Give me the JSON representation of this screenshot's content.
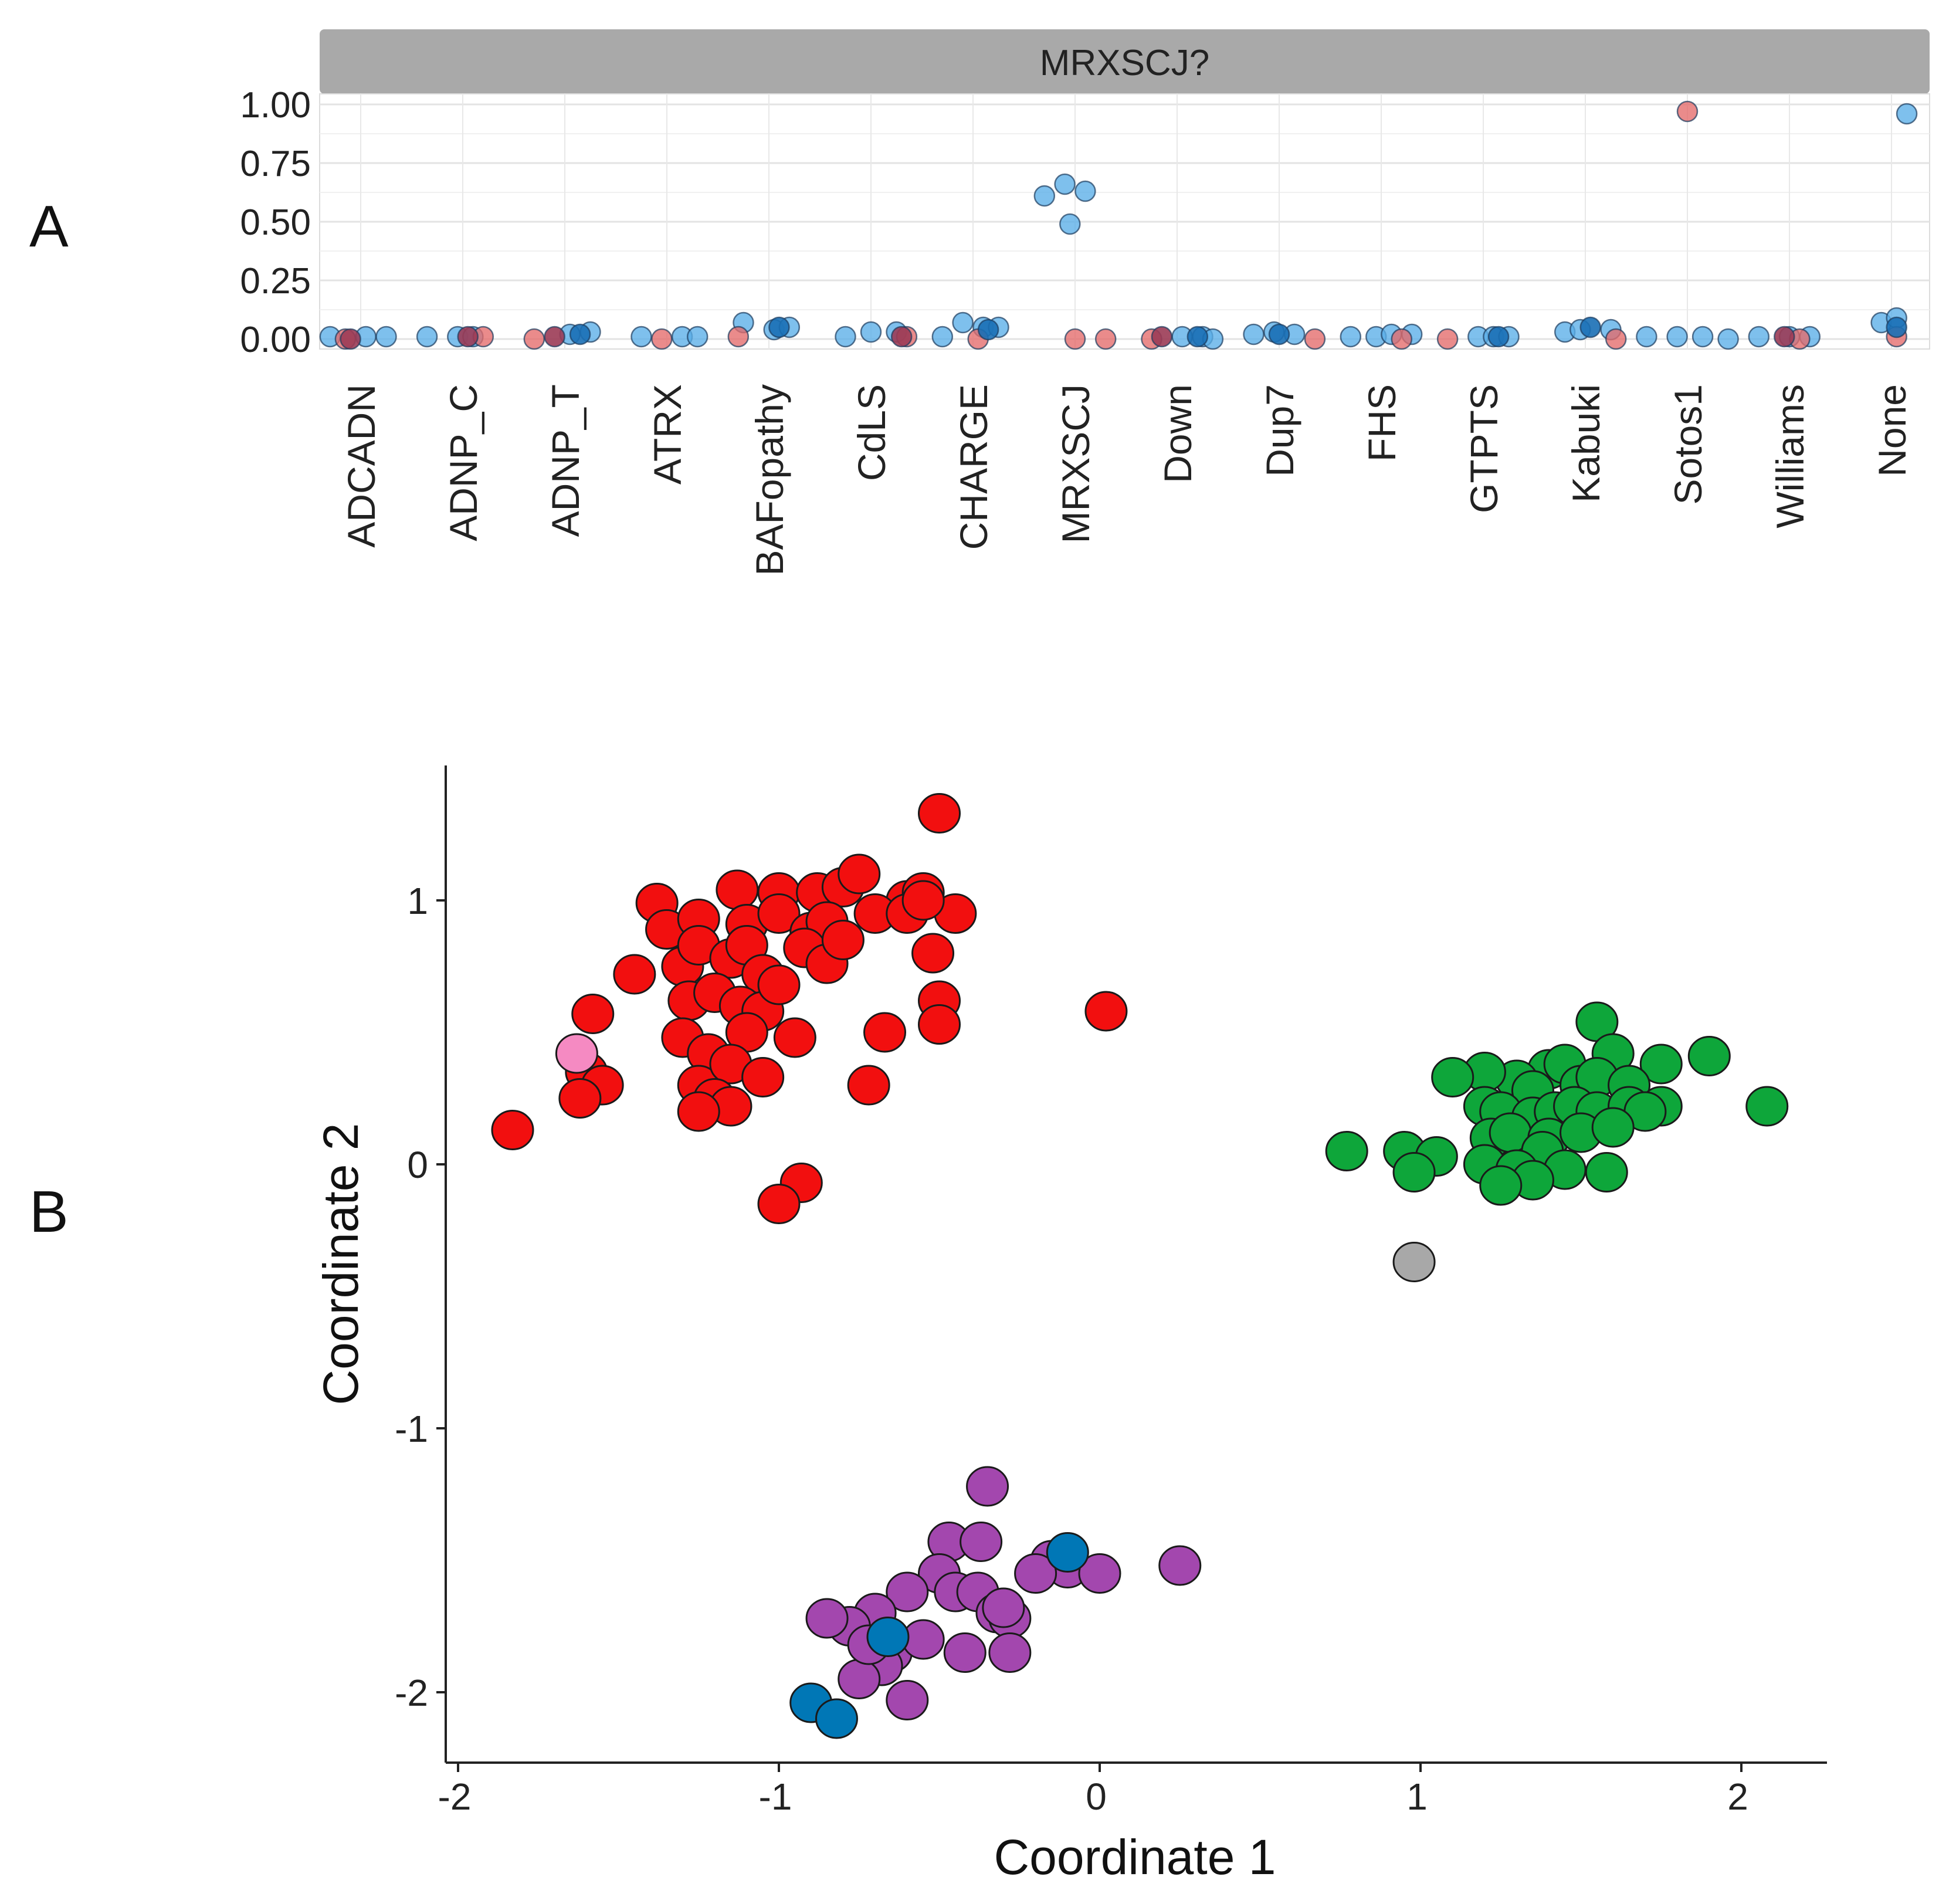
{
  "panel_a_letter": "A",
  "panel_b_letter": "B",
  "chart_data": [
    {
      "panel": "A",
      "type": "scatter",
      "title": "MRXSCJ?",
      "xlabel": "",
      "ylabel": "",
      "ylim": [
        0,
        1.0
      ],
      "yticks": [
        "0.00",
        "0.25",
        "0.50",
        "0.75",
        "1.00"
      ],
      "ytick_values": [
        0,
        0.25,
        0.5,
        0.75,
        1.0
      ],
      "grid": true,
      "categories": [
        "ADCADN",
        "ADNP_C",
        "ADNP_T",
        "ATRX",
        "BAFopathy",
        "CdLS",
        "CHARGE",
        "MRXSCJ",
        "Down",
        "Dup7",
        "FHS",
        "GTPTS",
        "Kabuki",
        "Sotos1",
        "Williams",
        "None"
      ],
      "colors": {
        "blue": "#5aaee8",
        "red": "#e46a6a",
        "dark_blue": "#1a6fb5",
        "dark_red": "#9b3b55"
      },
      "series": [
        {
          "name": "blue",
          "points": [
            {
              "c": 0,
              "dx": -0.3,
              "y": 0.01
            },
            {
              "c": 0,
              "dx": 0.05,
              "y": 0.01
            },
            {
              "c": 0,
              "dx": 0.25,
              "y": 0.01
            },
            {
              "c": 1,
              "dx": -0.35,
              "y": 0.01
            },
            {
              "c": 1,
              "dx": -0.05,
              "y": 0.01
            },
            {
              "c": 1,
              "dx": 0.1,
              "y": 0.01
            },
            {
              "c": 2,
              "dx": 0.05,
              "y": 0.02
            },
            {
              "c": 2,
              "dx": 0.25,
              "y": 0.03
            },
            {
              "c": 3,
              "dx": -0.25,
              "y": 0.01
            },
            {
              "c": 3,
              "dx": 0.15,
              "y": 0.01
            },
            {
              "c": 3,
              "dx": 0.3,
              "y": 0.01
            },
            {
              "c": 4,
              "dx": -0.25,
              "y": 0.07
            },
            {
              "c": 4,
              "dx": 0.05,
              "y": 0.04
            },
            {
              "c": 4,
              "dx": 0.2,
              "y": 0.05
            },
            {
              "c": 5,
              "dx": -0.25,
              "y": 0.01
            },
            {
              "c": 5,
              "dx": 0.0,
              "y": 0.03
            },
            {
              "c": 5,
              "dx": 0.25,
              "y": 0.03
            },
            {
              "c": 6,
              "dx": -0.1,
              "y": 0.07
            },
            {
              "c": 6,
              "dx": 0.1,
              "y": 0.05
            },
            {
              "c": 6,
              "dx": 0.25,
              "y": 0.05
            },
            {
              "c": 6,
              "dx": -0.3,
              "y": 0.01
            },
            {
              "c": 7,
              "dx": -0.3,
              "y": 0.61
            },
            {
              "c": 7,
              "dx": -0.1,
              "y": 0.66
            },
            {
              "c": 7,
              "dx": 0.1,
              "y": 0.63
            },
            {
              "c": 7,
              "dx": -0.05,
              "y": 0.49
            },
            {
              "c": 8,
              "dx": 0.05,
              "y": 0.01
            },
            {
              "c": 8,
              "dx": 0.25,
              "y": 0.01
            },
            {
              "c": 8,
              "dx": 0.35,
              "y": 0.0
            },
            {
              "c": 9,
              "dx": -0.25,
              "y": 0.02
            },
            {
              "c": 9,
              "dx": -0.05,
              "y": 0.03
            },
            {
              "c": 9,
              "dx": 0.15,
              "y": 0.02
            },
            {
              "c": 10,
              "dx": -0.3,
              "y": 0.01
            },
            {
              "c": 10,
              "dx": -0.05,
              "y": 0.01
            },
            {
              "c": 10,
              "dx": 0.1,
              "y": 0.02
            },
            {
              "c": 10,
              "dx": 0.3,
              "y": 0.02
            },
            {
              "c": 11,
              "dx": -0.05,
              "y": 0.01
            },
            {
              "c": 11,
              "dx": 0.1,
              "y": 0.01
            },
            {
              "c": 11,
              "dx": 0.25,
              "y": 0.01
            },
            {
              "c": 12,
              "dx": -0.2,
              "y": 0.03
            },
            {
              "c": 12,
              "dx": -0.05,
              "y": 0.04
            },
            {
              "c": 12,
              "dx": 0.25,
              "y": 0.04
            },
            {
              "c": 13,
              "dx": -0.4,
              "y": 0.01
            },
            {
              "c": 13,
              "dx": -0.1,
              "y": 0.01
            },
            {
              "c": 13,
              "dx": 0.15,
              "y": 0.01
            },
            {
              "c": 13,
              "dx": 0.4,
              "y": 0.0
            },
            {
              "c": 14,
              "dx": -0.3,
              "y": 0.01
            },
            {
              "c": 14,
              "dx": 0.0,
              "y": 0.01
            },
            {
              "c": 14,
              "dx": 0.2,
              "y": 0.01
            },
            {
              "c": 15,
              "dx": -0.1,
              "y": 0.07
            },
            {
              "c": 15,
              "dx": 0.05,
              "y": 0.09
            },
            {
              "c": 15,
              "dx": 0.15,
              "y": 0.96
            }
          ]
        },
        {
          "name": "red",
          "points": [
            {
              "c": 0,
              "dx": -0.15,
              "y": 0.0
            },
            {
              "c": 1,
              "dx": 0.2,
              "y": 0.01
            },
            {
              "c": 2,
              "dx": -0.3,
              "y": 0.0
            },
            {
              "c": 3,
              "dx": -0.05,
              "y": 0.0
            },
            {
              "c": 4,
              "dx": -0.3,
              "y": 0.01
            },
            {
              "c": 5,
              "dx": 0.35,
              "y": 0.01
            },
            {
              "c": 6,
              "dx": 0.05,
              "y": 0.0
            },
            {
              "c": 7,
              "dx": 0.0,
              "y": 0.0
            },
            {
              "c": 7,
              "dx": 0.3,
              "y": 0.0
            },
            {
              "c": 8,
              "dx": -0.25,
              "y": 0.0
            },
            {
              "c": 9,
              "dx": 0.35,
              "y": 0.0
            },
            {
              "c": 10,
              "dx": 0.2,
              "y": 0.0
            },
            {
              "c": 11,
              "dx": -0.35,
              "y": 0.0
            },
            {
              "c": 12,
              "dx": 0.3,
              "y": 0.0
            },
            {
              "c": 13,
              "dx": 0.0,
              "y": 0.97
            },
            {
              "c": 14,
              "dx": 0.1,
              "y": 0.0
            },
            {
              "c": 15,
              "dx": 0.05,
              "y": 0.01
            }
          ]
        },
        {
          "name": "dark_blue",
          "points": [
            {
              "c": 2,
              "dx": 0.15,
              "y": 0.02
            },
            {
              "c": 4,
              "dx": 0.1,
              "y": 0.05
            },
            {
              "c": 6,
              "dx": 0.15,
              "y": 0.04
            },
            {
              "c": 8,
              "dx": 0.2,
              "y": 0.01
            },
            {
              "c": 9,
              "dx": 0.0,
              "y": 0.02
            },
            {
              "c": 11,
              "dx": 0.15,
              "y": 0.01
            },
            {
              "c": 12,
              "dx": 0.05,
              "y": 0.05
            },
            {
              "c": 15,
              "dx": 0.05,
              "y": 0.05
            }
          ]
        },
        {
          "name": "dark_red",
          "points": [
            {
              "c": 0,
              "dx": -0.1,
              "y": 0.0
            },
            {
              "c": 1,
              "dx": 0.05,
              "y": 0.01
            },
            {
              "c": 2,
              "dx": -0.1,
              "y": 0.01
            },
            {
              "c": 5,
              "dx": 0.3,
              "y": 0.01
            },
            {
              "c": 8,
              "dx": -0.15,
              "y": 0.01
            },
            {
              "c": 14,
              "dx": -0.05,
              "y": 0.01
            }
          ]
        }
      ]
    },
    {
      "panel": "B",
      "type": "scatter",
      "title": "",
      "xlabel": "Coordinate 1",
      "ylabel": "Coordinate 2",
      "xlim": [
        -2.05,
        2.3
      ],
      "ylim": [
        -2.25,
        1.5
      ],
      "xticks": [
        "-2",
        "-1",
        "0",
        "1",
        "2"
      ],
      "xtick_values": [
        -2,
        -1,
        0,
        1,
        2
      ],
      "yticks": [
        "-2",
        "-1",
        "0",
        "1"
      ],
      "ytick_values": [
        -2,
        -1,
        0,
        1
      ],
      "grid": false,
      "series": [
        {
          "name": "red",
          "color": "#f20f0f",
          "points": [
            [
              -0.5,
              1.33
            ],
            [
              -1.38,
              0.99
            ],
            [
              -1.13,
              1.04
            ],
            [
              -1.0,
              1.03
            ],
            [
              -0.88,
              1.03
            ],
            [
              -0.8,
              1.05
            ],
            [
              -0.75,
              1.1
            ],
            [
              -0.6,
              1.0
            ],
            [
              -0.55,
              1.03
            ],
            [
              -0.45,
              0.95
            ],
            [
              -1.35,
              0.89
            ],
            [
              -1.25,
              0.93
            ],
            [
              -1.1,
              0.91
            ],
            [
              -1.0,
              0.95
            ],
            [
              -0.9,
              0.88
            ],
            [
              -0.85,
              0.92
            ],
            [
              -0.7,
              0.95
            ],
            [
              -0.6,
              0.95
            ],
            [
              -0.55,
              1.0
            ],
            [
              -1.45,
              0.72
            ],
            [
              -1.3,
              0.75
            ],
            [
              -1.25,
              0.83
            ],
            [
              -1.15,
              0.78
            ],
            [
              -1.1,
              0.83
            ],
            [
              -1.05,
              0.72
            ],
            [
              -0.92,
              0.82
            ],
            [
              -0.85,
              0.76
            ],
            [
              -0.8,
              0.85
            ],
            [
              -1.28,
              0.62
            ],
            [
              -1.2,
              0.65
            ],
            [
              -1.12,
              0.6
            ],
            [
              -1.05,
              0.58
            ],
            [
              -1.0,
              0.68
            ],
            [
              -0.52,
              0.8
            ],
            [
              -1.58,
              0.57
            ],
            [
              -1.3,
              0.48
            ],
            [
              -1.22,
              0.42
            ],
            [
              -1.1,
              0.5
            ],
            [
              -0.95,
              0.48
            ],
            [
              -0.5,
              0.62
            ],
            [
              -0.5,
              0.53
            ],
            [
              -0.67,
              0.5
            ],
            [
              -1.6,
              0.35
            ],
            [
              -1.25,
              0.3
            ],
            [
              -1.15,
              0.38
            ],
            [
              -1.05,
              0.33
            ],
            [
              -1.55,
              0.3
            ],
            [
              -1.2,
              0.25
            ],
            [
              -1.15,
              0.22
            ],
            [
              -1.25,
              0.2
            ],
            [
              -1.62,
              0.25
            ],
            [
              -0.72,
              0.3
            ],
            [
              -1.83,
              0.13
            ],
            [
              0.02,
              0.58
            ],
            [
              -0.93,
              -0.07
            ],
            [
              -1.0,
              -0.15
            ]
          ]
        },
        {
          "name": "pink",
          "color": "#f58ac2",
          "points": [
            [
              -1.63,
              0.42
            ]
          ]
        },
        {
          "name": "green",
          "color": "#0ea63a",
          "points": [
            [
              1.55,
              0.54
            ],
            [
              1.6,
              0.42
            ],
            [
              1.75,
              0.38
            ],
            [
              1.9,
              0.41
            ],
            [
              1.4,
              0.36
            ],
            [
              1.45,
              0.38
            ],
            [
              1.5,
              0.3
            ],
            [
              1.3,
              0.32
            ],
            [
              1.2,
              0.35
            ],
            [
              1.1,
              0.33
            ],
            [
              1.35,
              0.28
            ],
            [
              1.55,
              0.33
            ],
            [
              1.65,
              0.3
            ],
            [
              2.08,
              0.22
            ],
            [
              1.2,
              0.22
            ],
            [
              1.25,
              0.2
            ],
            [
              1.35,
              0.18
            ],
            [
              1.42,
              0.2
            ],
            [
              1.48,
              0.22
            ],
            [
              1.55,
              0.2
            ],
            [
              1.65,
              0.22
            ],
            [
              1.75,
              0.22
            ],
            [
              1.7,
              0.2
            ],
            [
              1.22,
              0.1
            ],
            [
              1.28,
              0.12
            ],
            [
              1.4,
              0.1
            ],
            [
              1.5,
              0.12
            ],
            [
              1.6,
              0.14
            ],
            [
              1.38,
              0.05
            ],
            [
              0.77,
              0.05
            ],
            [
              0.95,
              0.05
            ],
            [
              1.05,
              0.03
            ],
            [
              1.2,
              0.0
            ],
            [
              1.3,
              -0.02
            ],
            [
              1.45,
              -0.02
            ],
            [
              1.35,
              -0.06
            ],
            [
              1.25,
              -0.08
            ],
            [
              0.98,
              -0.03
            ],
            [
              1.58,
              -0.03
            ]
          ]
        },
        {
          "name": "gray",
          "color": "#a8a8a8",
          "points": [
            [
              0.98,
              -0.37
            ]
          ]
        },
        {
          "name": "purple",
          "color": "#a347ae",
          "points": [
            [
              -0.35,
              -1.22
            ],
            [
              -0.47,
              -1.43
            ],
            [
              -0.37,
              -1.43
            ],
            [
              -0.5,
              -1.55
            ],
            [
              -0.45,
              -1.62
            ],
            [
              -0.38,
              -1.62
            ],
            [
              -0.32,
              -1.7
            ],
            [
              -0.28,
              -1.72
            ],
            [
              -0.6,
              -1.62
            ],
            [
              -0.7,
              -1.7
            ],
            [
              -0.78,
              -1.75
            ],
            [
              -0.85,
              -1.72
            ],
            [
              -0.65,
              -1.85
            ],
            [
              -0.68,
              -1.9
            ],
            [
              -0.55,
              -1.8
            ],
            [
              -0.42,
              -1.85
            ],
            [
              -0.28,
              -1.85
            ],
            [
              -0.75,
              -1.95
            ],
            [
              -0.6,
              -2.03
            ],
            [
              -0.15,
              -1.5
            ],
            [
              -0.1,
              -1.53
            ],
            [
              -0.2,
              -1.55
            ],
            [
              0.0,
              -1.55
            ],
            [
              0.25,
              -1.52
            ],
            [
              -0.3,
              -1.68
            ],
            [
              -0.72,
              -1.82
            ]
          ]
        },
        {
          "name": "blue",
          "color": "#0077b6",
          "points": [
            [
              -0.1,
              -1.47
            ],
            [
              -0.66,
              -1.79
            ],
            [
              -0.9,
              -2.04
            ],
            [
              -0.82,
              -2.1
            ]
          ]
        }
      ]
    }
  ]
}
